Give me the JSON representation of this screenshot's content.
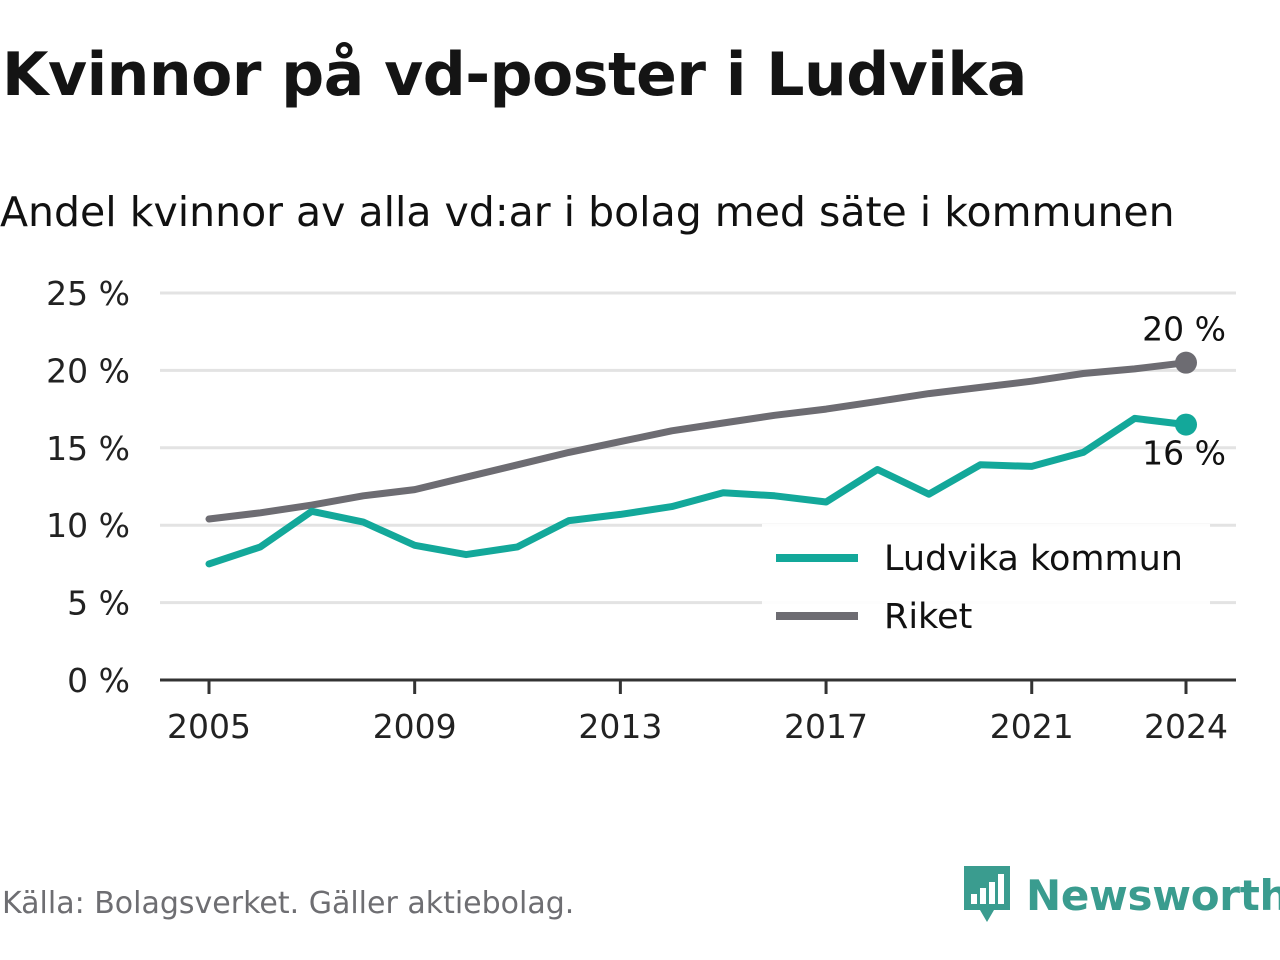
{
  "header": {
    "title": "Kvinnor på vd-poster i Ludvika",
    "subtitle": "Andel kvinnor av alla vd:ar i bolag med säte i kommunen"
  },
  "footer": {
    "source": "Källa: Bolagsverket. Gäller aktiebolag.",
    "brand": "Newsworthy"
  },
  "colors": {
    "ludvika": "#13a89a",
    "riket": "#6d6c72",
    "grid": "#e3e3e3",
    "axis": "#333333",
    "brand": "#3a9c8f"
  },
  "chart_data": {
    "type": "line",
    "x": [
      2005,
      2006,
      2007,
      2008,
      2009,
      2010,
      2011,
      2012,
      2013,
      2014,
      2015,
      2016,
      2017,
      2018,
      2019,
      2020,
      2021,
      2022,
      2023,
      2024
    ],
    "xticks": [
      2005,
      2009,
      2013,
      2017,
      2021,
      2024
    ],
    "yticks": [
      0,
      5,
      10,
      15,
      20,
      25
    ],
    "ytick_labels": [
      "0 %",
      "5 %",
      "10 %",
      "15 %",
      "20 %",
      "25 %"
    ],
    "ylim": [
      0,
      25
    ],
    "grid": true,
    "legend_position": "bottom-right",
    "series": [
      {
        "name": "Ludvika kommun",
        "color": "#13a89a",
        "values": [
          7.5,
          8.6,
          10.9,
          10.2,
          8.7,
          8.1,
          8.6,
          10.3,
          10.7,
          11.2,
          12.1,
          11.9,
          11.5,
          13.6,
          12.0,
          13.9,
          13.8,
          14.7,
          16.9,
          16.5
        ],
        "end_label": "16 %"
      },
      {
        "name": "Riket",
        "color": "#6d6c72",
        "values": [
          10.4,
          10.8,
          11.3,
          11.9,
          12.3,
          13.1,
          13.9,
          14.7,
          15.4,
          16.1,
          16.6,
          17.1,
          17.5,
          18.0,
          18.5,
          18.9,
          19.3,
          19.8,
          20.1,
          20.5
        ],
        "end_label": "20 %"
      }
    ]
  }
}
